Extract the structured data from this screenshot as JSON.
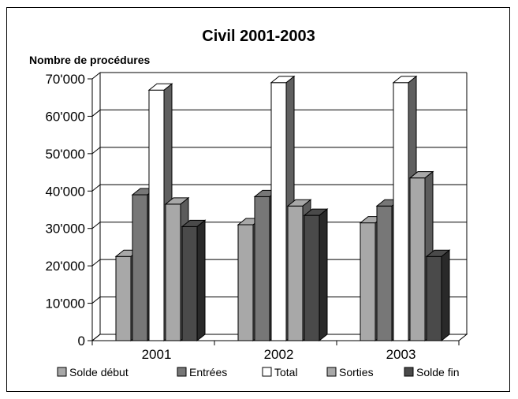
{
  "chart_data": {
    "type": "bar",
    "title": "Civil 2001-2003",
    "ylabel": "Nombre de procédures",
    "xlabel": "",
    "categories": [
      "2001",
      "2002",
      "2003"
    ],
    "ylim": [
      0,
      70000
    ],
    "yticks": [
      0,
      10000,
      20000,
      30000,
      40000,
      50000,
      60000,
      70000
    ],
    "ytick_labels": [
      "0",
      "10'000",
      "20'000",
      "30'000",
      "40'000",
      "50'000",
      "60'000",
      "70'000"
    ],
    "grid": true,
    "legend": "bottom",
    "series": [
      {
        "name": "Solde début",
        "values": [
          22500,
          31000,
          31500
        ],
        "color": "#a8a8a8"
      },
      {
        "name": "Entrées",
        "values": [
          39000,
          38500,
          36000
        ],
        "color": "#777777"
      },
      {
        "name": "Total",
        "values": [
          67000,
          69000,
          69000
        ],
        "color": "#ffffff"
      },
      {
        "name": "Sorties",
        "values": [
          36500,
          36000,
          43500
        ],
        "color": "#a8a8a8"
      },
      {
        "name": "Solde fin",
        "values": [
          30500,
          33500,
          22500
        ],
        "color": "#4a4a4a"
      }
    ]
  }
}
